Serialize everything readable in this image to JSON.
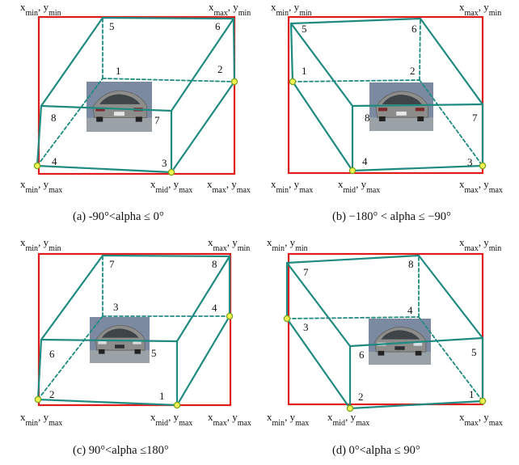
{
  "colors": {
    "box_edge": "#1f8a80",
    "frame": "#e11b1b",
    "marker_fill": "#f2f252",
    "marker_stroke": "#7aa51e"
  },
  "labels": {
    "top_left": [
      "x",
      "min",
      ", y",
      "min"
    ],
    "top_right": [
      "x",
      "max",
      ", y",
      "min"
    ],
    "bottom_left": [
      "x",
      "min",
      ", y",
      "max"
    ],
    "bottom_mid": [
      "x",
      "mid",
      ", y",
      "max"
    ],
    "bottom_right": [
      "x",
      "max",
      ", y",
      "max"
    ]
  },
  "panels": [
    {
      "id": "a",
      "caption": "(a)  -90°<alpha ≤ 0°",
      "view": "rear",
      "vertices": [
        "1",
        "2",
        "3",
        "4",
        "5",
        "6",
        "7",
        "8"
      ]
    },
    {
      "id": "b",
      "caption": "(b)  −180° < alpha ≤ −90°",
      "view": "rear",
      "vertices": [
        "1",
        "2",
        "3",
        "4",
        "5",
        "6",
        "7",
        "8"
      ]
    },
    {
      "id": "c",
      "caption": "(c)  90°<alpha ≤180°",
      "view": "front",
      "vertices": [
        "1",
        "2",
        "3",
        "4",
        "5",
        "6",
        "7",
        "8"
      ]
    },
    {
      "id": "d",
      "caption": "(d)  0°<alpha ≤ 90°",
      "view": "front",
      "vertices": [
        "1",
        "2",
        "3",
        "4",
        "5",
        "6",
        "7",
        "8"
      ]
    }
  ]
}
